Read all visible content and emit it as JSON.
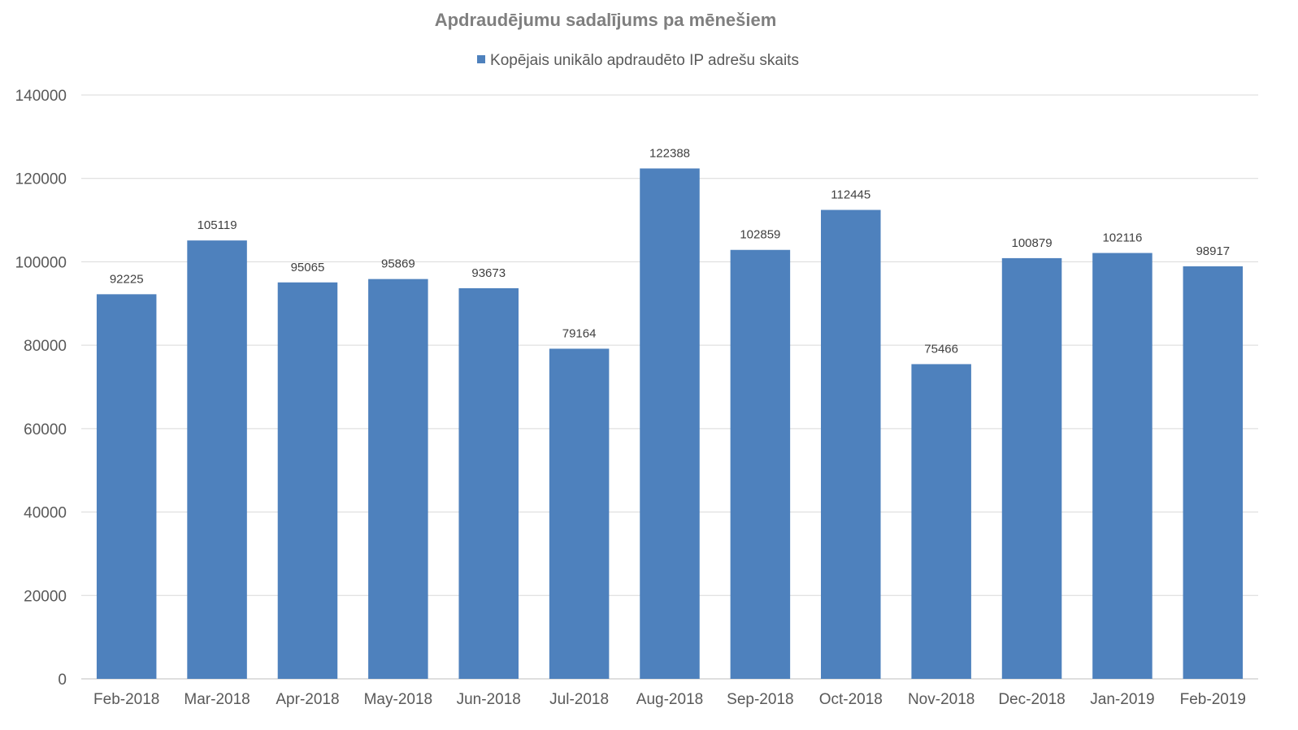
{
  "chart_data": {
    "type": "bar",
    "title": "Apdraudējumu sadalījums pa mēnešiem",
    "categories": [
      "Feb-2018",
      "Mar-2018",
      "Apr-2018",
      "May-2018",
      "Jun-2018",
      "Jul-2018",
      "Aug-2018",
      "Sep-2018",
      "Oct-2018",
      "Nov-2018",
      "Dec-2018",
      "Jan-2019",
      "Feb-2019"
    ],
    "series": [
      {
        "name": "Kopējais unikālo apdraudēto IP adrešu skaits",
        "values": [
          92225,
          105119,
          95065,
          95869,
          93673,
          79164,
          122388,
          102859,
          112445,
          75466,
          100879,
          102116,
          98917
        ],
        "color": "#4e81bd"
      }
    ],
    "ylim": [
      0,
      140000
    ],
    "yticks": [
      0,
      20000,
      40000,
      60000,
      80000,
      100000,
      120000,
      140000
    ],
    "grid": true,
    "legend_position": "top",
    "data_labels": true,
    "gridline_color": "#d9d9d9"
  }
}
